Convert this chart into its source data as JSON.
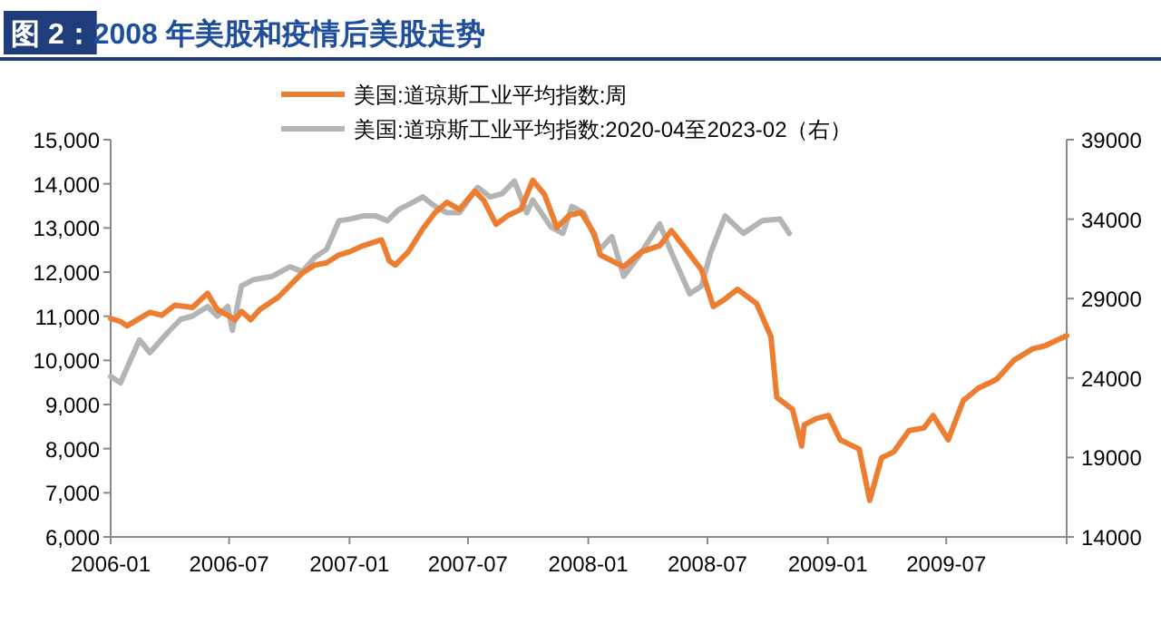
{
  "chart_data": {
    "type": "line",
    "title": "图 2：2008 年美股和疫情后美股走势",
    "xlim": [
      "2006-01",
      "2010-01"
    ],
    "xticks": [
      "2006-01",
      "2006-07",
      "2007-01",
      "2007-07",
      "2008-01",
      "2008-07",
      "2009-01",
      "2009-07",
      {
        "value": "2010-01",
        "label": null
      }
    ],
    "ylim": [
      6000,
      15000
    ],
    "yticks": [
      {
        "value": 6000,
        "label": "6,000"
      },
      {
        "value": 7000,
        "label": "7,000"
      },
      {
        "value": 8000,
        "label": "8,000"
      },
      {
        "value": 9000,
        "label": "9,000"
      },
      {
        "value": 10000,
        "label": "10,000"
      },
      {
        "value": 11000,
        "label": "11,000"
      },
      {
        "value": 12000,
        "label": "12,000"
      },
      {
        "value": 13000,
        "label": "13,000"
      },
      {
        "value": 14000,
        "label": "14,000"
      },
      {
        "value": 15000,
        "label": "15,000"
      }
    ],
    "y2lim": [
      14000,
      39000
    ],
    "y2ticks": [
      14000,
      19000,
      24000,
      29000,
      34000,
      39000
    ],
    "legend": "top",
    "series": [
      {
        "name": "美国:道琼斯工业平均指数:周",
        "color": "#ed7d31",
        "x": [
          "2006-01-01",
          "2006-01-16",
          "2006-01-26",
          "2006-02-14",
          "2006-03-02",
          "2006-03-20",
          "2006-04-09",
          "2006-05-06",
          "2006-05-29",
          "2006-06-13",
          "2006-06-29",
          "2006-07-10",
          "2006-07-20",
          "2006-08-03",
          "2006-08-17",
          "2006-09-14",
          "2006-10-02",
          "2006-10-21",
          "2006-11-09",
          "2006-11-27",
          "2006-12-16",
          "2007-01-01",
          "2007-01-22",
          "2007-02-19",
          "2007-03-03",
          "2007-03-12",
          "2007-04-01",
          "2007-04-23",
          "2007-05-12",
          "2007-05-30",
          "2007-06-18",
          "2007-07-11",
          "2007-07-25",
          "2007-08-13",
          "2007-09-01",
          "2007-09-20",
          "2007-10-08",
          "2007-10-26",
          "2007-11-14",
          "2007-12-03",
          "2007-12-21",
          "2008-01-10",
          "2008-01-19",
          "2008-02-24",
          "2008-03-22",
          "2008-04-19",
          "2008-05-07",
          "2008-05-25",
          "2008-06-22",
          "2008-07-10",
          "2008-07-28",
          "2008-08-16",
          "2008-09-14",
          "2008-10-06",
          "2008-10-15",
          "2008-11-08",
          "2008-11-22",
          "2008-11-26",
          "2008-12-14",
          "2009-01-02",
          "2009-01-20",
          "2009-02-18",
          "2009-03-06",
          "2009-03-24",
          "2009-04-12",
          "2009-05-05",
          "2009-05-28",
          "2009-06-11",
          "2009-07-04",
          "2009-07-27",
          "2009-08-19",
          "2009-09-16",
          "2009-10-13",
          "2009-11-10",
          "2009-11-29",
          "2010-01-01"
        ],
        "values": [
          10950,
          10880,
          10780,
          10950,
          11090,
          11020,
          11250,
          11200,
          11520,
          11150,
          11020,
          10920,
          11110,
          10920,
          11150,
          11430,
          11700,
          11980,
          12160,
          12210,
          12390,
          12460,
          12600,
          12730,
          12250,
          12160,
          12460,
          12980,
          13350,
          13580,
          13420,
          13830,
          13630,
          13080,
          13290,
          13420,
          14080,
          13760,
          13010,
          13290,
          13350,
          12870,
          12390,
          12120,
          12460,
          12600,
          12940,
          12600,
          12050,
          11220,
          11390,
          11610,
          11290,
          10540,
          9160,
          8890,
          8060,
          8540,
          8680,
          8750,
          8200,
          7990,
          6830,
          7790,
          7930,
          8410,
          8470,
          8750,
          8200,
          9090,
          9370,
          9570,
          10010,
          10260,
          10330,
          10560
        ]
      },
      {
        "name": "美国:道琼斯工业平均指数:2020-04至2023-02（右）",
        "color": "#b4b4b4",
        "axis": "y2",
        "x": [
          "2006-01-01",
          "2006-01-16",
          "2006-02-14",
          "2006-03-02",
          "2006-03-30",
          "2006-04-18",
          "2006-05-06",
          "2006-05-29",
          "2006-06-13",
          "2006-06-29",
          "2006-07-06",
          "2006-07-20",
          "2006-08-08",
          "2006-09-05",
          "2006-10-02",
          "2006-10-21",
          "2006-11-09",
          "2006-11-27",
          "2006-12-16",
          "2007-01-01",
          "2007-01-22",
          "2007-02-10",
          "2007-02-28",
          "2007-03-17",
          "2007-04-05",
          "2007-04-23",
          "2007-05-12",
          "2007-05-30",
          "2007-06-18",
          "2007-07-16",
          "2007-08-04",
          "2007-08-22",
          "2007-09-10",
          "2007-09-29",
          "2007-10-08",
          "2007-11-05",
          "2007-11-23",
          "2007-12-07",
          "2007-12-25",
          "2008-01-19",
          "2008-02-06",
          "2008-02-24",
          "2008-03-22",
          "2008-04-19",
          "2008-05-07",
          "2008-06-04",
          "2008-06-22",
          "2008-07-06",
          "2008-07-28",
          "2008-08-25",
          "2008-09-23",
          "2008-10-20",
          "2008-11-03"
        ],
        "values": [
          24100,
          23700,
          26400,
          25600,
          26900,
          27700,
          27900,
          28500,
          27900,
          28500,
          27000,
          29800,
          30200,
          30400,
          31000,
          30700,
          31600,
          32100,
          33900,
          34000,
          34200,
          34200,
          33900,
          34600,
          35000,
          35400,
          34800,
          34400,
          34400,
          36000,
          35400,
          35600,
          36400,
          34400,
          35200,
          33500,
          33100,
          34800,
          34400,
          32100,
          32900,
          30400,
          31900,
          33700,
          31900,
          29300,
          29800,
          31900,
          34200,
          33100,
          33900,
          34000,
          33100
        ]
      }
    ]
  }
}
